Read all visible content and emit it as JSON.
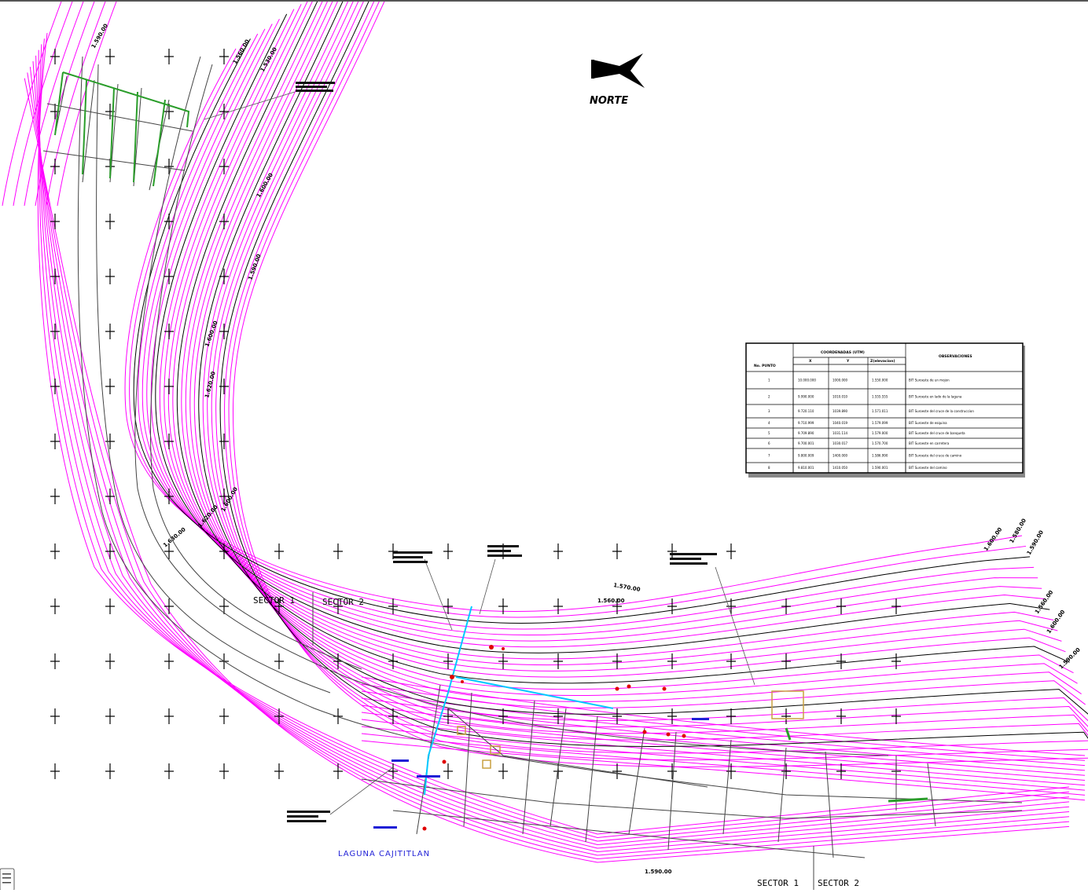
{
  "map": {
    "north_label": "NORTE",
    "lake_label": "LAGUNA CAJITITLAN",
    "sector_labels_top": [
      "SECTOR 1",
      "SECTOR 2"
    ],
    "sector_labels_bottom": [
      "SECTOR 1",
      "SECTOR 2"
    ],
    "contour_labels": [
      "1.590.00",
      "1.560.00",
      "1.530.00",
      "1.600.00",
      "1.590.00",
      "1.600.00",
      "1.620.00",
      "1.600.00",
      "1.620.00",
      "1.630.00",
      "1.600.00",
      "1.580.00",
      "1.590.00",
      "1.560.00",
      "1.600.00",
      "1.590.00",
      "1.570.00",
      "1.560.00",
      "1.590.00"
    ],
    "colors": {
      "contours": "#ff00ff",
      "index_contours": "#000000",
      "water_line": "#00c8ff",
      "pipes": "#2a9d2a",
      "points": "#e00000",
      "labels_blue": "#1f1fd6",
      "buildings": "#c8a040"
    }
  },
  "coord_table": {
    "headers": {
      "point": "No. PUNTO",
      "coords": "COORDENADAS (UTM)",
      "x": "X",
      "y": "Y",
      "elev": "Z(elevacion)",
      "obs": "OBSERVACIONES"
    },
    "rows": [
      {
        "n": "1",
        "x": "10.000.000",
        "y": "1000.000",
        "z": "1.550.000",
        "obs": "BIT Suroeste de un mojon"
      },
      {
        "n": "2",
        "x": "9.990.000",
        "y": "1010.010",
        "z": "1.555.555",
        "obs": "BIT Suroeste en lado de la laguna"
      },
      {
        "n": "3",
        "x": "9.720.110",
        "y": "1039.890",
        "z": "1.571.011",
        "obs": "BIT Suroeste del cruce de la construccion"
      },
      {
        "n": "4",
        "x": "9.710.999",
        "y": "1040.019",
        "z": "1.579.099",
        "obs": "BIT Suroeste de esquina"
      },
      {
        "n": "5",
        "x": "9.709.890",
        "y": "1031.114",
        "z": "1.579.000",
        "obs": "BIT Suroeste del cruce de banqueta"
      },
      {
        "n": "6",
        "x": "9.700.001",
        "y": "1030.017",
        "z": "1.570.700",
        "obs": "BIT Suroeste en carretera"
      },
      {
        "n": "7",
        "x": "9.800.009",
        "y": "1400.000",
        "z": "1.586.990",
        "obs": "BIT Suroeste del cruce de camino"
      },
      {
        "n": "8",
        "x": "9.810.001",
        "y": "1410.050",
        "z": "1.590.001",
        "obs": "BIT Suroeste del camino"
      }
    ]
  }
}
